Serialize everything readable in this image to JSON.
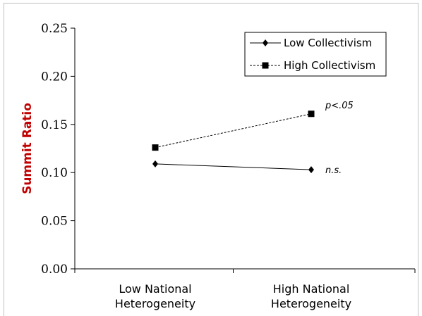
{
  "chart_data": {
    "type": "line",
    "title": "",
    "xlabel": "",
    "ylabel": "Summit Ratio",
    "categories": [
      "Low National\nHeterogeneity",
      "High National\nHeterogeneity"
    ],
    "ylim": [
      0,
      0.25
    ],
    "yticks": [
      "0.00",
      "0.05",
      "0.10",
      "0.15",
      "0.20",
      "0.25"
    ],
    "grid": false,
    "legend_position": "top-right",
    "series": [
      {
        "name": "Low Collectivism",
        "values": [
          0.109,
          0.103
        ],
        "line_style": "solid",
        "marker": "diamond",
        "annotation": "n.s."
      },
      {
        "name": "High Collectivism",
        "values": [
          0.126,
          0.161
        ],
        "line_style": "dashed",
        "marker": "square",
        "annotation": "p<.05"
      }
    ],
    "colors": {
      "ylabel": "#c00000",
      "lines": "#000000"
    }
  }
}
